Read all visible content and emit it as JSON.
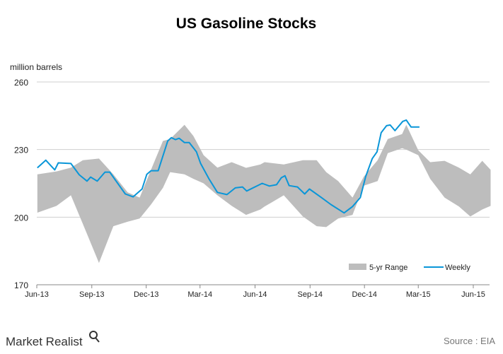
{
  "chart_data": {
    "type": "area",
    "title": "US Gasoline Stocks",
    "ylabel": "million barrels",
    "xlabel": "",
    "ylim": [
      170,
      260
    ],
    "yticks": [
      "260",
      "230",
      "200",
      "170"
    ],
    "yticks_values": [
      260,
      230,
      200,
      170
    ],
    "xlim": [
      "2013-06-01",
      "2015-07-01"
    ],
    "xticks": [
      {
        "label": "Jun-13",
        "date": "2013-06-01"
      },
      {
        "label": "Sep-13",
        "date": "2013-09-01"
      },
      {
        "label": "Dec-13",
        "date": "2013-12-01"
      },
      {
        "label": "Mar-14",
        "date": "2014-03-01"
      },
      {
        "label": "Jun-14",
        "date": "2014-06-01"
      },
      {
        "label": "Sep-14",
        "date": "2014-09-01"
      },
      {
        "label": "Dec-14",
        "date": "2014-12-01"
      },
      {
        "label": "Mar-15",
        "date": "2015-03-01"
      },
      {
        "label": "Jun-15",
        "date": "2015-06-01"
      }
    ],
    "grid": "horizontal",
    "legend_position": "bottom-right",
    "series": [
      {
        "name": "5-yr Range",
        "kind": "band",
        "color": "#bdbdbd",
        "x": [
          "2013-06-02",
          "2013-07-04",
          "2013-07-28",
          "2013-08-17",
          "2013-09-13",
          "2013-10-07",
          "2013-10-31",
          "2013-11-20",
          "2013-12-09",
          "2013-12-29",
          "2014-01-10",
          "2014-02-03",
          "2014-02-18",
          "2014-03-07",
          "2014-03-30",
          "2014-04-23",
          "2014-05-17",
          "2014-06-10",
          "2014-06-17",
          "2014-07-19",
          "2014-08-20",
          "2014-09-12",
          "2014-09-28",
          "2014-10-18",
          "2014-11-11",
          "2014-11-30",
          "2014-12-23",
          "2015-01-09",
          "2015-02-02",
          "2015-02-09",
          "2015-03-01",
          "2015-03-21",
          "2015-04-14",
          "2015-05-08",
          "2015-05-27",
          "2015-06-16",
          "2015-06-30"
        ],
        "upper": [
          219,
          220.3,
          222,
          225.3,
          226,
          219,
          211,
          208.7,
          221,
          233.8,
          234.7,
          241,
          236,
          227.5,
          222,
          224.4,
          221.9,
          223.4,
          224.4,
          223.4,
          225.3,
          225.3,
          220,
          216,
          208.7,
          218,
          225.3,
          234.7,
          236.9,
          241,
          229.7,
          224.4,
          225,
          222,
          219,
          225,
          221
        ],
        "lower": [
          202,
          205,
          209.7,
          197,
          179.7,
          196,
          198,
          199.4,
          205.6,
          213,
          220,
          219,
          217,
          215,
          209.7,
          205,
          201,
          203.4,
          204.7,
          209.7,
          200.3,
          196,
          195.6,
          199.4,
          201,
          214,
          216,
          228.4,
          230.6,
          230,
          227.5,
          217,
          208.7,
          204.7,
          200.3,
          203.4,
          205
        ]
      },
      {
        "name": "Weekly",
        "kind": "line",
        "color": "#0a96d8",
        "x": [
          "2013-06-02",
          "2013-06-16",
          "2013-07-01",
          "2013-07-07",
          "2013-07-28",
          "2013-08-11",
          "2013-08-24",
          "2013-08-30",
          "2013-09-10",
          "2013-09-23",
          "2013-10-01",
          "2013-10-27",
          "2013-11-09",
          "2013-11-24",
          "2013-12-02",
          "2013-12-09",
          "2013-12-21",
          "2014-01-06",
          "2014-01-12",
          "2014-01-19",
          "2014-01-25",
          "2014-02-03",
          "2014-02-11",
          "2014-02-23",
          "2014-03-02",
          "2014-03-16",
          "2014-03-30",
          "2014-04-15",
          "2014-04-29",
          "2014-05-11",
          "2014-05-18",
          "2014-06-13",
          "2014-06-25",
          "2014-07-07",
          "2014-07-15",
          "2014-07-21",
          "2014-07-28",
          "2014-08-11",
          "2014-08-23",
          "2014-08-31",
          "2014-09-20",
          "2014-10-06",
          "2014-10-28",
          "2014-11-11",
          "2014-11-24",
          "2014-12-03",
          "2014-12-14",
          "2014-12-22",
          "2014-12-29",
          "2015-01-07",
          "2015-01-13",
          "2015-01-21",
          "2015-02-03",
          "2015-02-09",
          "2015-02-17",
          "2015-03-03"
        ],
        "values": [
          221.9,
          225.3,
          221,
          224.1,
          223.8,
          218.8,
          216,
          217.8,
          216,
          220,
          220,
          210.3,
          209,
          212.5,
          219,
          220.6,
          220.6,
          233.8,
          235.3,
          234.4,
          235,
          233.1,
          233.1,
          229,
          223.8,
          217,
          211,
          210,
          213,
          213.4,
          211.6,
          215,
          213.8,
          214.4,
          217.5,
          218.4,
          214,
          213.4,
          210.3,
          212.5,
          208.7,
          205.6,
          201.9,
          204.7,
          208.7,
          218,
          226,
          229,
          237.5,
          240.6,
          240.9,
          238.4,
          242.5,
          243.1,
          240,
          240
        ]
      }
    ]
  },
  "footer": {
    "logo_text": "Market Realist",
    "source": "Source : EIA"
  }
}
